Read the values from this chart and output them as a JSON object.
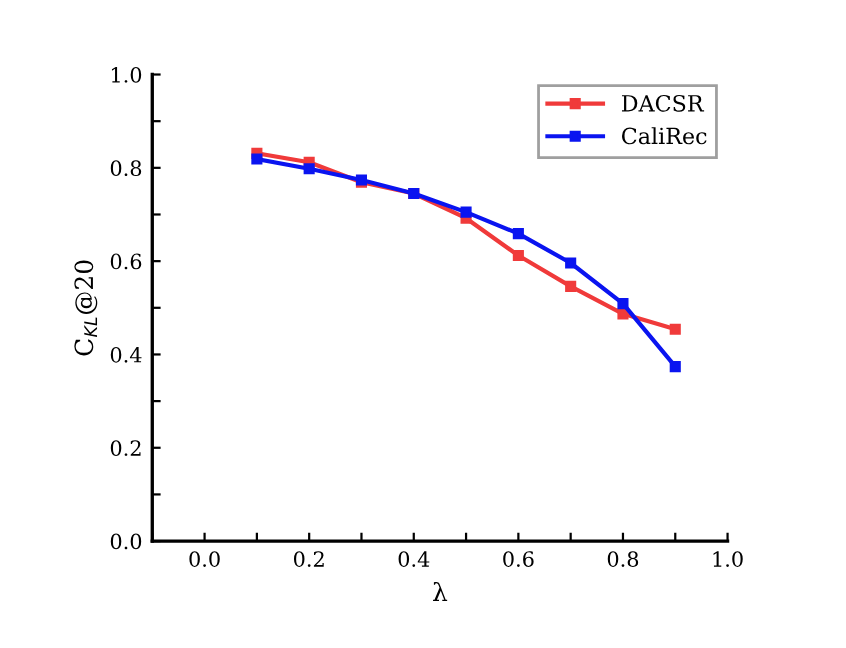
{
  "chart_data": {
    "type": "line",
    "xlabel": "λ",
    "ylabel": "C$_{KL}$@20",
    "x": [
      0.1,
      0.2,
      0.3,
      0.4,
      0.5,
      0.6,
      0.7,
      0.8,
      0.9
    ],
    "series": [
      {
        "name": "DACSR",
        "color": "#f03a3a",
        "values": [
          0.831,
          0.812,
          0.769,
          0.745,
          0.692,
          0.612,
          0.546,
          0.487,
          0.454
        ]
      },
      {
        "name": "CaliRec",
        "color": "#0a14f0",
        "values": [
          0.819,
          0.798,
          0.774,
          0.745,
          0.705,
          0.659,
          0.596,
          0.509,
          0.374
        ]
      }
    ],
    "xlim": [
      -0.1,
      1.0
    ],
    "ylim": [
      0.0,
      1.0
    ],
    "xticks": [
      {
        "value": -0.1,
        "label": null
      },
      {
        "value": 0.0,
        "label": "0.0"
      },
      {
        "value": 0.1,
        "label": null
      },
      {
        "value": 0.2,
        "label": "0.2"
      },
      {
        "value": 0.3,
        "label": null
      },
      {
        "value": 0.4,
        "label": "0.4"
      },
      {
        "value": 0.5,
        "label": null
      },
      {
        "value": 0.6,
        "label": "0.6"
      },
      {
        "value": 0.7,
        "label": null
      },
      {
        "value": 0.8,
        "label": "0.8"
      },
      {
        "value": 0.9,
        "label": null
      },
      {
        "value": 1.0,
        "label": "1.0"
      }
    ],
    "yticks": [
      {
        "value": 0.0,
        "label": "0.0"
      },
      {
        "value": 0.1,
        "label": null
      },
      {
        "value": 0.2,
        "label": "0.2"
      },
      {
        "value": 0.3,
        "label": null
      },
      {
        "value": 0.4,
        "label": "0.4"
      },
      {
        "value": 0.5,
        "label": null
      },
      {
        "value": 0.6,
        "label": "0.6"
      },
      {
        "value": 0.7,
        "label": null
      },
      {
        "value": 0.8,
        "label": "0.8"
      },
      {
        "value": 0.9,
        "label": null
      },
      {
        "value": 1.0,
        "label": "1.0"
      }
    ],
    "grid": false,
    "legend": "top right",
    "marker": "square",
    "line_style": "solid"
  }
}
